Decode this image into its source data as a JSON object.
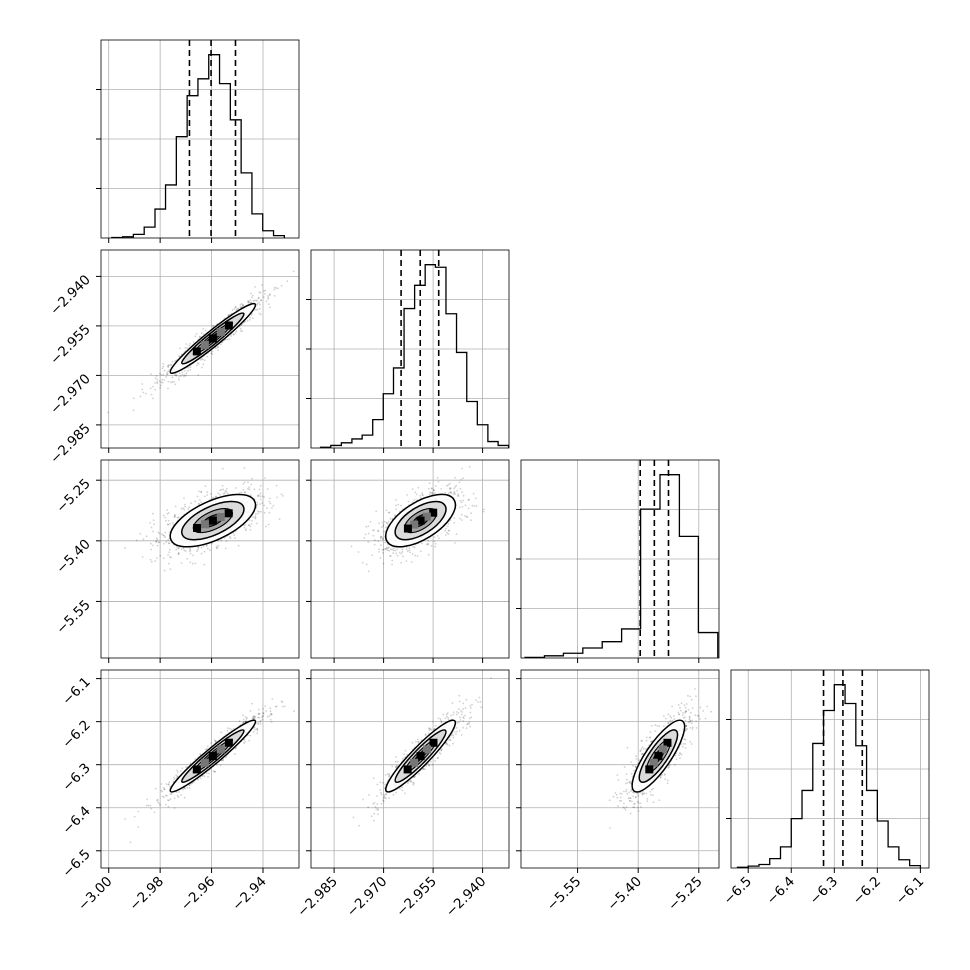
{
  "chart_data": {
    "type": "corner",
    "title": "",
    "parameters": [
      "",
      "",
      "",
      ""
    ],
    "grid": true,
    "ranges": [
      [
        -3.003,
        -2.926
      ],
      [
        -2.992,
        -2.932
      ],
      [
        -5.69,
        -5.2
      ],
      [
        -6.54,
        -6.08
      ]
    ],
    "ticks": [
      {
        "values": [
          -3.0,
          -2.98,
          -2.96,
          -2.94
        ],
        "labels": [
          "−3.00",
          "−2.98",
          "−2.96",
          "−2.94"
        ]
      },
      {
        "values": [
          -2.985,
          -2.97,
          -2.955,
          -2.94
        ],
        "labels": [
          "−2.985",
          "−2.970",
          "−2.955",
          "−2.940"
        ]
      },
      {
        "values": [
          -5.55,
          -5.4,
          -5.25
        ],
        "labels": [
          "−5.55",
          "−5.40",
          "−5.25"
        ]
      },
      {
        "values": [
          -6.5,
          -6.4,
          -6.3,
          -6.2,
          -6.1
        ],
        "labels": [
          "−6.5",
          "−6.4",
          "−6.3",
          "−6.2",
          "−6.1"
        ]
      }
    ],
    "means": [
      -2.9595,
      -2.9588,
      -5.35,
      -6.28
    ],
    "quantiles": [
      [
        -2.9686,
        -2.9602,
        -2.9507
      ],
      [
        -2.9647,
        -2.9589,
        -2.9533
      ],
      [
        -5.395,
        -5.36,
        -5.325
      ],
      [
        -6.325,
        -6.28,
        -6.235
      ]
    ],
    "histograms": [
      {
        "bin_edges": [
          -2.9988,
          -2.9946,
          -2.9904,
          -2.9862,
          -2.982,
          -2.9779,
          -2.9737,
          -2.9695,
          -2.9653,
          -2.9611,
          -2.9569,
          -2.9527,
          -2.9485,
          -2.9443,
          -2.9401,
          -2.9359,
          -2.9317
        ],
        "counts": [
          0.2,
          0.5,
          1.5,
          4.5,
          12,
          22,
          42,
          59,
          66,
          76,
          64,
          49,
          27,
          10,
          3,
          1
        ]
      },
      {
        "bin_edges": [
          -2.9891,
          -2.986,
          -2.9828,
          -2.9796,
          -2.9765,
          -2.9733,
          -2.9701,
          -2.967,
          -2.9638,
          -2.9606,
          -2.9574,
          -2.9543,
          -2.9511,
          -2.9479,
          -2.9448,
          -2.9416,
          -2.9384,
          -2.9353,
          -2.9321
        ],
        "counts": [
          0.3,
          1,
          2,
          3.5,
          5,
          11,
          21,
          31,
          54,
          63,
          71,
          70,
          52,
          37,
          18,
          9,
          2.5,
          1
        ]
      },
      {
        "bin_edges": [
          -5.68,
          -5.632,
          -5.585,
          -5.537,
          -5.489,
          -5.441,
          -5.394,
          -5.346,
          -5.298,
          -5.251,
          -5.203
        ],
        "counts": [
          0.3,
          1.2,
          2.6,
          5.5,
          9,
          16,
          82,
          101,
          67,
          14
        ]
      },
      {
        "bin_edges": [
          -6.525,
          -6.5,
          -6.475,
          -6.45,
          -6.425,
          -6.4,
          -6.375,
          -6.35,
          -6.325,
          -6.3,
          -6.275,
          -6.25,
          -6.225,
          -6.2,
          -6.175,
          -6.15,
          -6.125,
          -6.1
        ],
        "counts": [
          0.3,
          0.8,
          1.5,
          4,
          9,
          21,
          33,
          53,
          67,
          78,
          70,
          52,
          33,
          20,
          9,
          3.5,
          1
        ]
      }
    ],
    "density_2d": [
      {
        "x": 0,
        "y": 1,
        "corr": 0.96
      },
      {
        "x": 0,
        "y": 2,
        "corr": 0.6
      },
      {
        "x": 1,
        "y": 2,
        "corr": 0.6
      },
      {
        "x": 0,
        "y": 3,
        "corr": 0.96
      },
      {
        "x": 1,
        "y": 3,
        "corr": 0.93
      },
      {
        "x": 2,
        "y": 3,
        "corr": 0.82
      }
    ],
    "style": {
      "line_color": "#000000",
      "grid_color": "#b0b0b0",
      "point_color": "#000000"
    }
  }
}
